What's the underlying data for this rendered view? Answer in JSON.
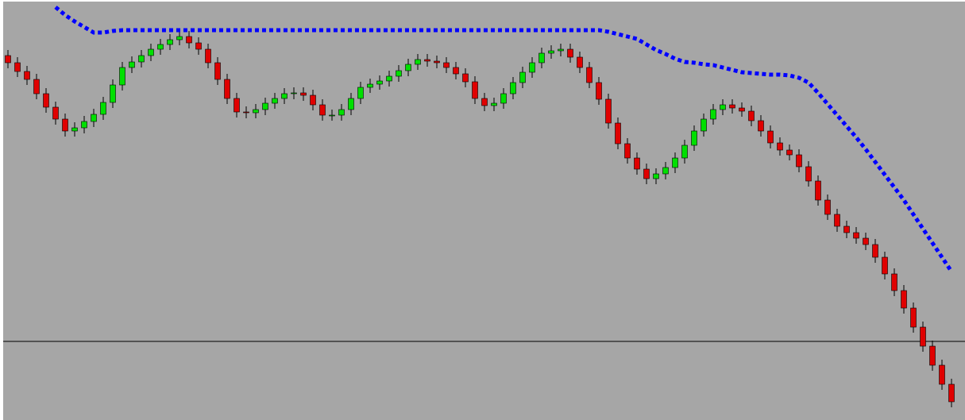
{
  "chart_data": {
    "type": "candlestick",
    "categories": [
      null,
      null,
      null,
      null,
      null,
      null,
      null,
      null,
      null,
      null,
      null,
      null,
      null,
      null,
      null,
      null,
      null,
      null,
      null,
      null,
      null,
      null,
      null,
      null,
      null,
      null,
      null,
      null,
      null,
      null,
      null,
      null,
      null,
      null,
      null,
      null,
      null,
      null,
      null,
      null,
      null,
      null,
      null,
      null,
      null,
      null,
      null,
      null,
      null,
      null,
      null,
      null,
      null,
      null,
      null,
      null,
      null,
      null,
      null,
      null,
      null,
      null,
      null,
      null,
      null,
      null,
      null,
      null,
      null,
      null,
      null,
      null,
      null,
      null,
      null,
      null,
      null,
      null,
      null,
      null,
      null,
      null,
      null,
      null,
      null,
      null,
      null,
      null,
      null,
      null,
      null,
      null,
      null,
      null,
      null,
      null,
      null,
      null,
      null,
      null
    ],
    "open": [
      459,
      450,
      439,
      429,
      411,
      394,
      379,
      364,
      368,
      376,
      385,
      400,
      422,
      444,
      451,
      459,
      467,
      473,
      479,
      483,
      475,
      467,
      450,
      429,
      405,
      388,
      387,
      391,
      399,
      405,
      411,
      412,
      409,
      397,
      384,
      384,
      391,
      405,
      419,
      423,
      427,
      433,
      440,
      448,
      454,
      452,
      450,
      444,
      436,
      426,
      405,
      396,
      399,
      411,
      425,
      438,
      450,
      462,
      465,
      467,
      457,
      444,
      425,
      404,
      374,
      348,
      330,
      316,
      304,
      310,
      318,
      330,
      346,
      364,
      379,
      391,
      397,
      393,
      389,
      377,
      364,
      349,
      340,
      334,
      319,
      301,
      277,
      259,
      244,
      236,
      229,
      221,
      205,
      184,
      163,
      141,
      117,
      93,
      69,
      45
    ],
    "high": [
      466,
      457,
      446,
      436,
      418,
      401,
      386,
      375,
      383,
      392,
      407,
      429,
      451,
      458,
      466,
      474,
      480,
      486,
      490,
      490,
      482,
      474,
      457,
      436,
      412,
      395,
      398,
      406,
      412,
      418,
      419,
      419,
      416,
      404,
      391,
      398,
      412,
      426,
      430,
      434,
      440,
      447,
      455,
      461,
      461,
      459,
      457,
      451,
      443,
      433,
      412,
      406,
      418,
      432,
      445,
      457,
      469,
      472,
      474,
      474,
      464,
      451,
      432,
      411,
      381,
      355,
      337,
      323,
      317,
      325,
      337,
      353,
      371,
      386,
      398,
      404,
      404,
      400,
      396,
      384,
      371,
      356,
      347,
      341,
      326,
      308,
      284,
      266,
      251,
      243,
      236,
      228,
      212,
      191,
      170,
      148,
      124,
      100,
      76,
      52
    ],
    "low": [
      443,
      432,
      422,
      404,
      387,
      372,
      357,
      357,
      361,
      369,
      378,
      393,
      415,
      437,
      444,
      452,
      460,
      466,
      472,
      468,
      460,
      443,
      422,
      398,
      381,
      380,
      380,
      384,
      392,
      398,
      404,
      402,
      390,
      377,
      377,
      377,
      384,
      398,
      412,
      416,
      420,
      426,
      433,
      441,
      445,
      443,
      437,
      429,
      419,
      398,
      389,
      389,
      392,
      404,
      418,
      431,
      443,
      455,
      458,
      450,
      437,
      418,
      397,
      367,
      341,
      323,
      309,
      297,
      297,
      303,
      311,
      323,
      339,
      357,
      372,
      384,
      386,
      382,
      370,
      357,
      342,
      333,
      327,
      312,
      294,
      270,
      252,
      237,
      229,
      222,
      214,
      198,
      177,
      156,
      134,
      110,
      86,
      62,
      38,
      16
    ],
    "close": [
      450,
      439,
      429,
      411,
      394,
      379,
      364,
      368,
      376,
      385,
      400,
      422,
      444,
      451,
      459,
      467,
      473,
      479,
      483,
      475,
      467,
      450,
      429,
      405,
      388,
      387,
      391,
      399,
      405,
      411,
      412,
      409,
      397,
      384,
      384,
      391,
      405,
      419,
      423,
      427,
      433,
      440,
      448,
      454,
      452,
      450,
      444,
      436,
      426,
      405,
      396,
      399,
      411,
      425,
      438,
      450,
      462,
      465,
      467,
      457,
      444,
      425,
      404,
      374,
      348,
      330,
      316,
      304,
      310,
      318,
      330,
      346,
      364,
      379,
      391,
      397,
      393,
      389,
      377,
      364,
      349,
      340,
      334,
      319,
      301,
      277,
      259,
      244,
      236,
      229,
      221,
      205,
      184,
      163,
      141,
      117,
      93,
      69,
      45,
      23
    ],
    "up_color": "#00e000",
    "down_color": "#e00000",
    "band": {
      "color": "#0000ff",
      "values": [
        null,
        null,
        null,
        null,
        null,
        520,
        510,
        502,
        495,
        488,
        488,
        490,
        491,
        491,
        491,
        491,
        491,
        491,
        491,
        491,
        491,
        491,
        491,
        491,
        491,
        491,
        491,
        491,
        491,
        491,
        491,
        491,
        491,
        491,
        491,
        491,
        491,
        491,
        491,
        491,
        491,
        491,
        491,
        491,
        491,
        491,
        491,
        491,
        491,
        491,
        491,
        491,
        491,
        491,
        491,
        491,
        491,
        491,
        491,
        491,
        491,
        491,
        491,
        489,
        486,
        483,
        480,
        473,
        466,
        461,
        455,
        451,
        450,
        448,
        447,
        444,
        441,
        438,
        437,
        436,
        435,
        435,
        434,
        431,
        425,
        412,
        398,
        384,
        370,
        356,
        341,
        325,
        309,
        293,
        277,
        259,
        241,
        223,
        205,
        187
      ]
    },
    "reference_line": 99,
    "ylim": [
      0,
      529
    ]
  }
}
